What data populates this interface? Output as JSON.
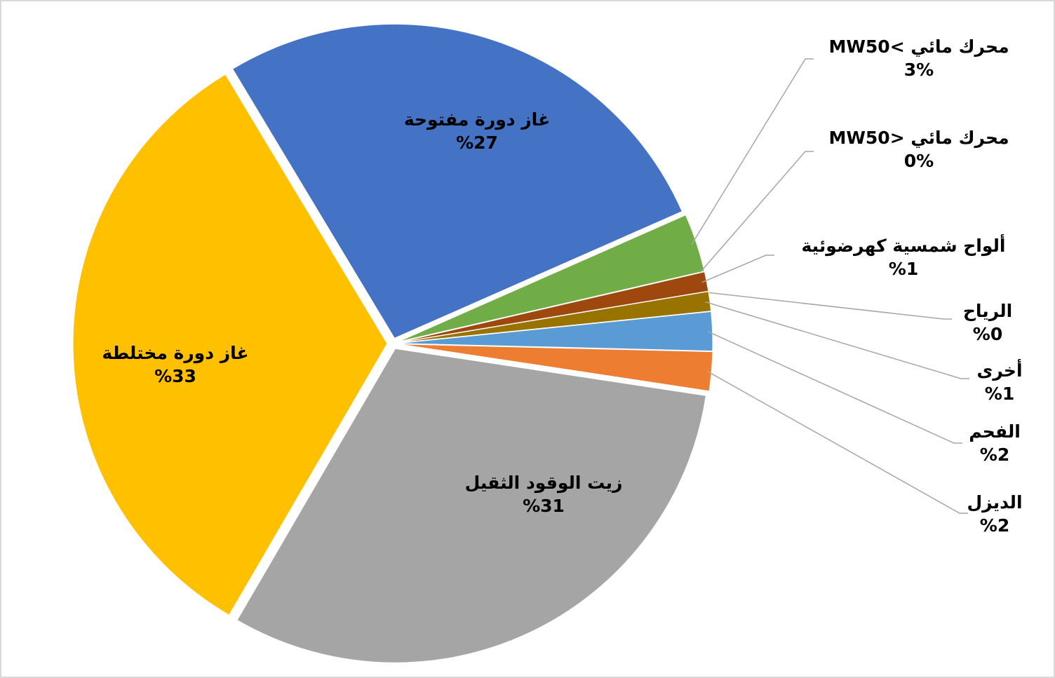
{
  "chart_data": {
    "type": "pie",
    "categories": [
      "غاز دورة مفتوحة",
      "محرك مائي >MW50",
      "محرك مائي <MW50",
      "ألواح شمسية كهرضوئية",
      "الرياح",
      "أخرى",
      "الفحم",
      "الديزل",
      "زيت الوقود الثقيل",
      "غاز دورة مختلطة"
    ],
    "values": [
      27,
      3,
      0,
      1,
      0,
      1,
      2,
      2,
      31,
      33
    ],
    "value_labels": [
      "%27",
      "3%",
      "0%",
      "%1",
      "%0",
      "%1",
      "%2",
      "%2",
      "%31",
      "%33"
    ],
    "colors": [
      "#4472c4",
      "#70ad47",
      "#264478",
      "#9e480e",
      "#636363",
      "#997300",
      "#5b9bd5",
      "#ed7d31",
      "#a5a5a5",
      "#ffc000"
    ]
  }
}
